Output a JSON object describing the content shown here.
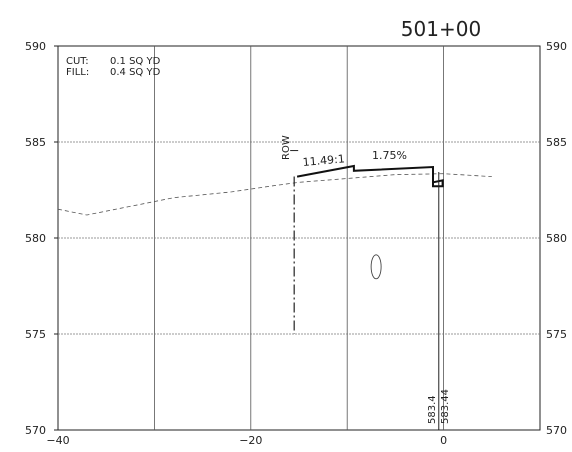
{
  "station": "501+00",
  "quantities": {
    "cut_label": "CUT:",
    "cut_value": "0.1 SQ YD",
    "fill_label": "FILL:",
    "fill_value": "0.4 SQ YD"
  },
  "annotations": {
    "row_label": "ROW",
    "slope_ratio": "11.49:1",
    "cross_slope": "1.75%",
    "elev_existing": "583.4",
    "elev_proposed": "583.44"
  },
  "chart_data": {
    "type": "line",
    "title": "501+00",
    "xlabel": "",
    "ylabel": "",
    "xlim": [
      -40,
      10
    ],
    "ylim": [
      570,
      590
    ],
    "x_ticks": [
      -40,
      -20,
      0
    ],
    "x_tick_labels": [
      "−40",
      "−20",
      "0"
    ],
    "y_ticks": [
      570,
      575,
      580,
      585,
      590
    ],
    "grid": true,
    "series": [
      {
        "style": "dashed",
        "x": [
          -40,
          -37,
          -33,
          -28,
          -22,
          -18,
          -15,
          -10,
          -5,
          0,
          5
        ],
        "y": [
          581.5,
          581.2,
          581.6,
          582.1,
          582.4,
          582.7,
          582.9,
          583.1,
          583.3,
          583.35,
          583.2
        ]
      },
      {
        "style": "solid",
        "x": [
          -15.2,
          -9.3,
          -9.3,
          -1.1,
          -1.1,
          -0.1,
          -0.1,
          -1.1,
          -1.1
        ],
        "y": [
          583.2,
          583.75,
          583.5,
          583.7,
          582.9,
          583.0,
          582.7,
          582.7,
          583.7
        ]
      }
    ],
    "row_line": {
      "x": -15.5,
      "y_top": 583.2,
      "y_bottom": 575
    },
    "centerline": {
      "x": -0.5,
      "y_top": 583.44,
      "y_bottom": 570
    },
    "ellipse": {
      "x": -7,
      "y": 578.5
    }
  }
}
